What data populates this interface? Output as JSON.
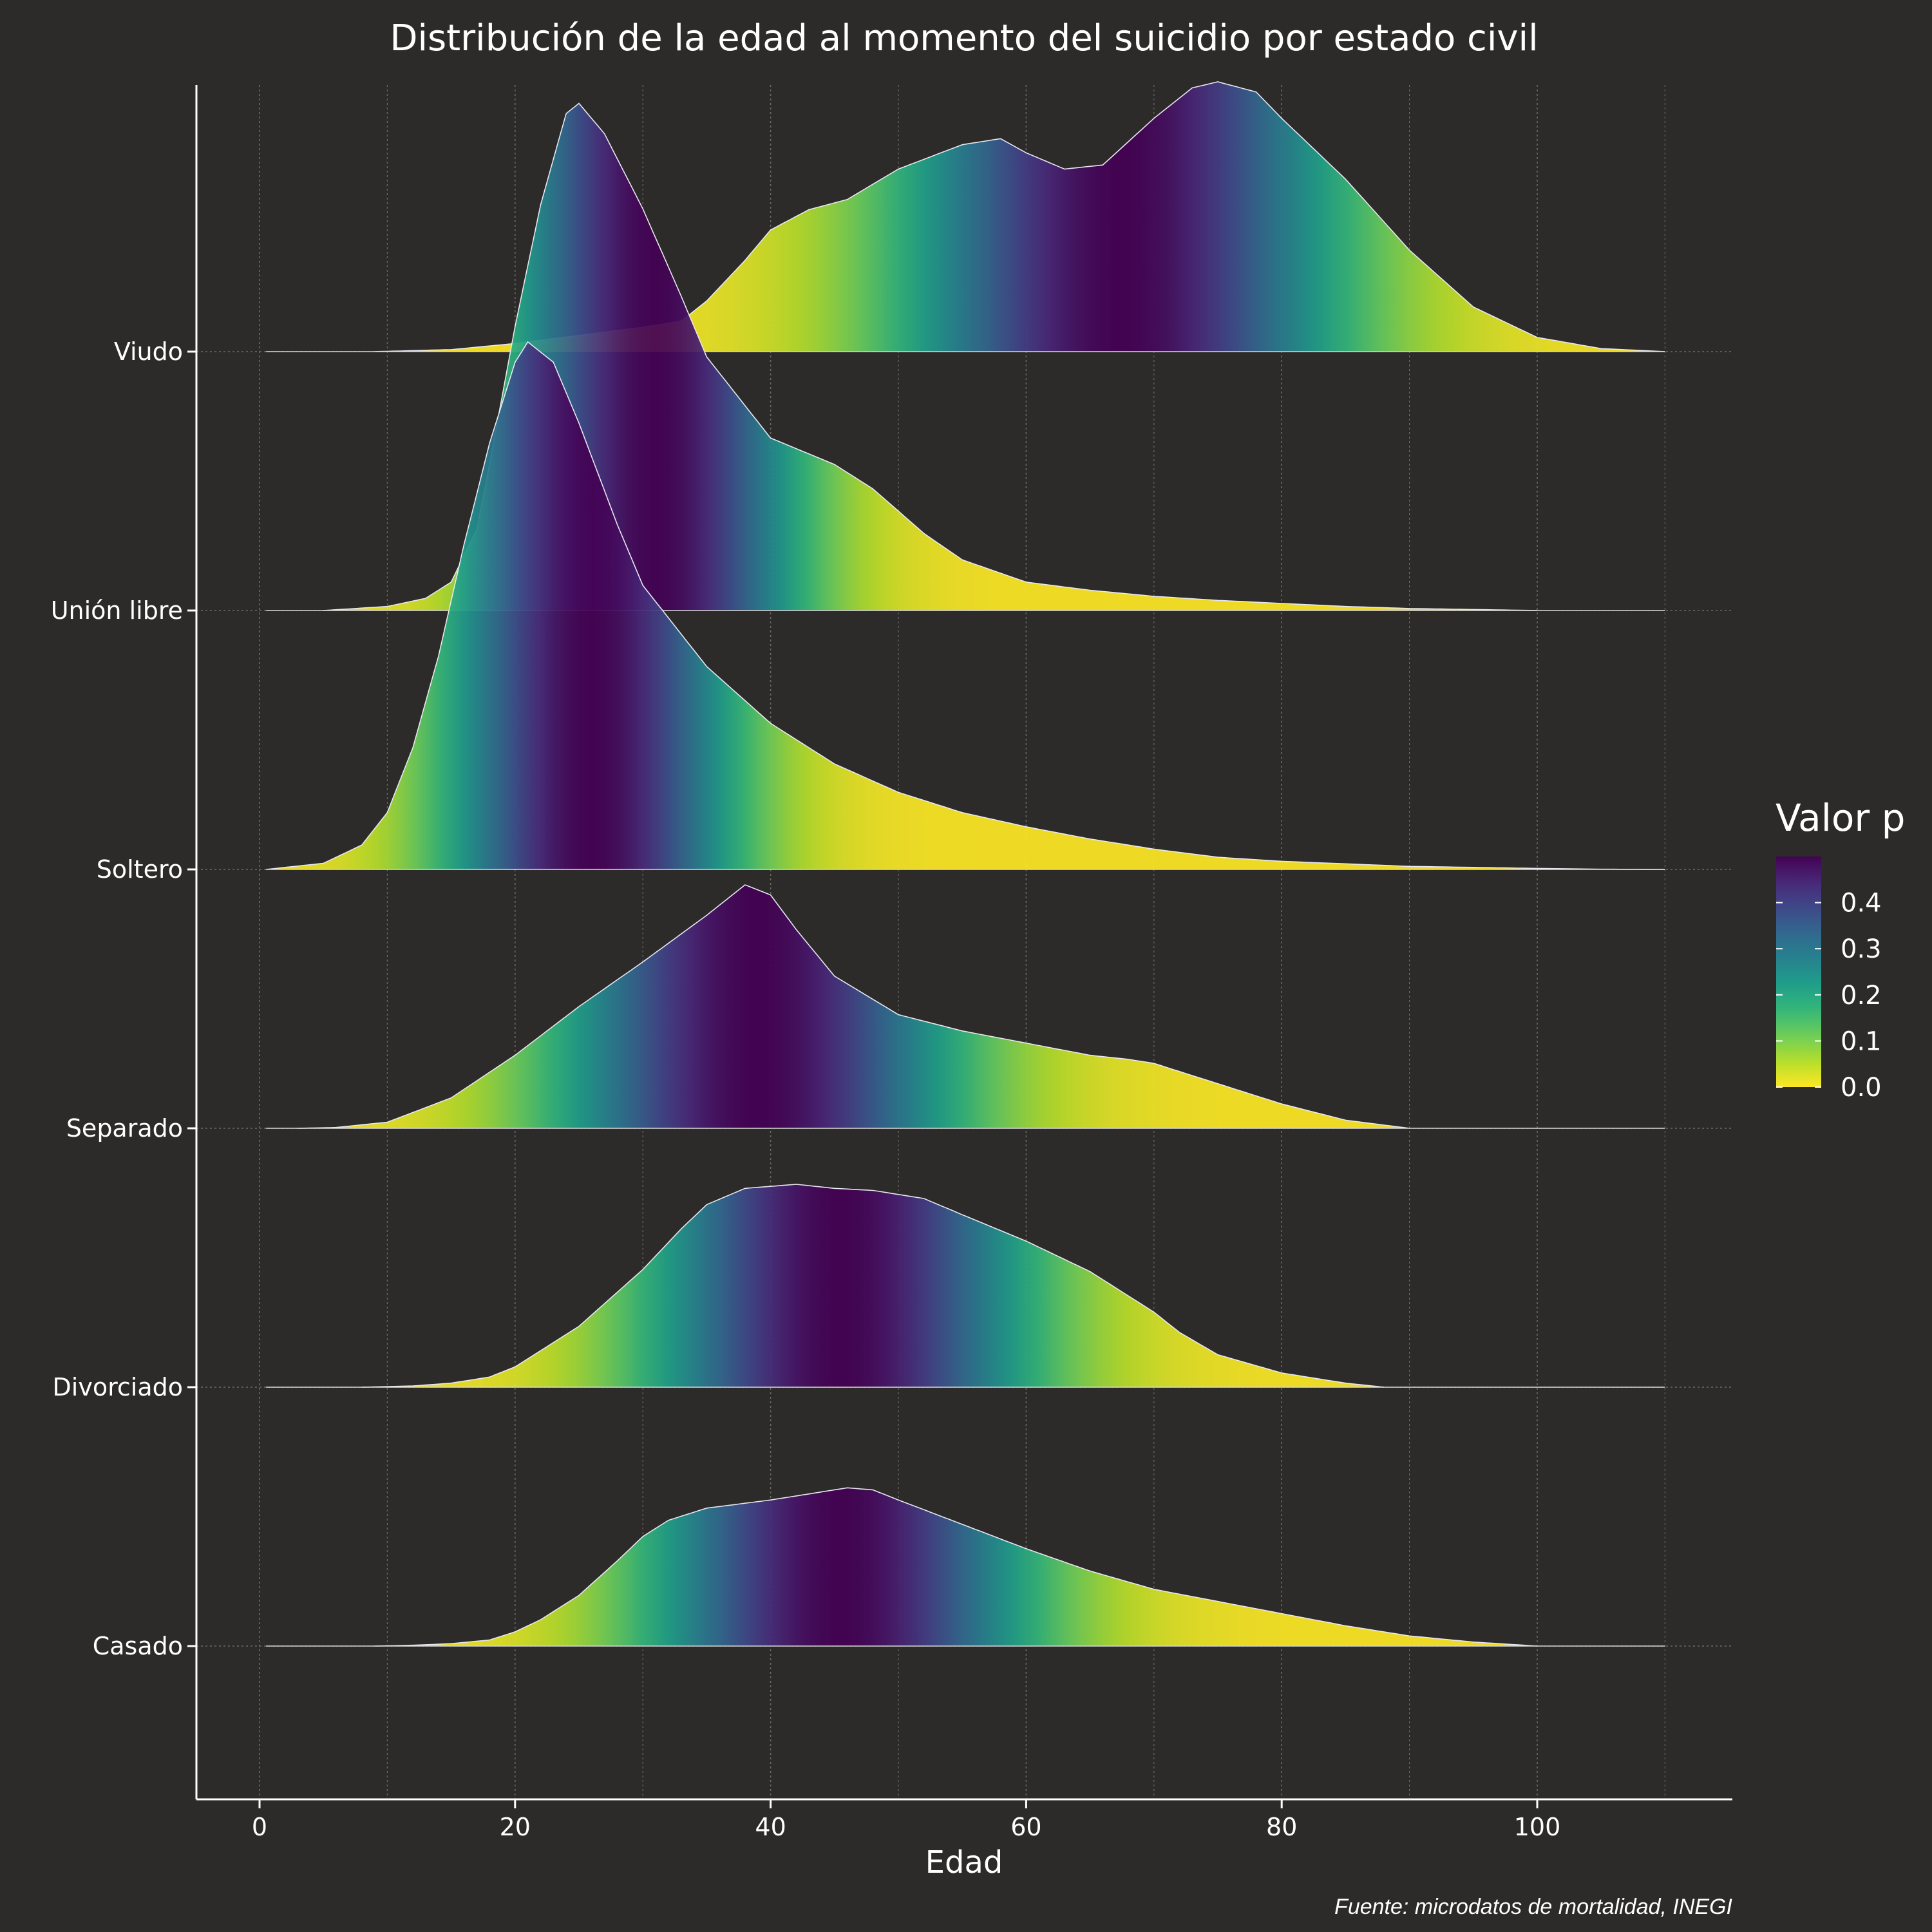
{
  "chart_data": {
    "type": "area",
    "subtype": "ridgeline",
    "title": "Distribución de la edad al momento del suicidio por estado civil",
    "xlabel": "Edad",
    "ylabel": "",
    "caption": "Fuente: microdatos de mortalidad, INEGI",
    "xlim": [
      -5,
      115
    ],
    "x_ticks": [
      0,
      20,
      40,
      60,
      80,
      100
    ],
    "grid": true,
    "legend": {
      "title": "Valor p",
      "position": "right",
      "ticks": [
        0.0,
        0.1,
        0.2,
        0.3,
        0.4
      ],
      "tick_labels": [
        "0.0",
        "0.1",
        "0.2",
        "0.3",
        "0.4"
      ],
      "range": [
        0,
        0.5
      ],
      "palette": [
        "#fde725",
        "#b5de2b",
        "#6ece58",
        "#35b779",
        "#1f9e89",
        "#26828e",
        "#31688e",
        "#3e4989",
        "#482878",
        "#440154"
      ]
    },
    "categories": [
      "Casado",
      "Divorciado",
      "Separado",
      "Soltero",
      "Unión libre",
      "Viudo"
    ],
    "series": [
      {
        "name": "Casado",
        "x_range": [
          9,
          100
        ],
        "median": 45.5,
        "mad": 10.5,
        "points": [
          [
            9,
            0
          ],
          [
            12,
            0.004
          ],
          [
            15,
            0.012
          ],
          [
            18,
            0.03
          ],
          [
            20,
            0.07
          ],
          [
            22,
            0.13
          ],
          [
            25,
            0.25
          ],
          [
            28,
            0.42
          ],
          [
            30,
            0.54
          ],
          [
            32,
            0.62
          ],
          [
            35,
            0.68
          ],
          [
            40,
            0.72
          ],
          [
            43,
            0.75
          ],
          [
            46,
            0.78
          ],
          [
            48,
            0.77
          ],
          [
            50,
            0.72
          ],
          [
            55,
            0.6
          ],
          [
            60,
            0.48
          ],
          [
            65,
            0.37
          ],
          [
            70,
            0.28
          ],
          [
            75,
            0.22
          ],
          [
            80,
            0.16
          ],
          [
            85,
            0.1
          ],
          [
            90,
            0.05
          ],
          [
            95,
            0.02
          ],
          [
            100,
            0
          ]
        ]
      },
      {
        "name": "Divorciado",
        "x_range": [
          8,
          88
        ],
        "median": 45.5,
        "mad": 10.5,
        "points": [
          [
            8,
            0
          ],
          [
            12,
            0.006
          ],
          [
            15,
            0.02
          ],
          [
            18,
            0.05
          ],
          [
            20,
            0.1
          ],
          [
            25,
            0.3
          ],
          [
            30,
            0.58
          ],
          [
            33,
            0.78
          ],
          [
            35,
            0.9
          ],
          [
            38,
            0.98
          ],
          [
            42,
            1.0
          ],
          [
            45,
            0.98
          ],
          [
            48,
            0.97
          ],
          [
            52,
            0.93
          ],
          [
            55,
            0.85
          ],
          [
            60,
            0.72
          ],
          [
            65,
            0.57
          ],
          [
            68,
            0.45
          ],
          [
            70,
            0.37
          ],
          [
            72,
            0.27
          ],
          [
            75,
            0.16
          ],
          [
            80,
            0.07
          ],
          [
            85,
            0.02
          ],
          [
            88,
            0
          ]
        ]
      },
      {
        "name": "Separado",
        "x_range": [
          3,
          90
        ],
        "median": 39,
        "mad": 11,
        "points": [
          [
            3,
            0
          ],
          [
            6,
            0.004
          ],
          [
            10,
            0.03
          ],
          [
            15,
            0.15
          ],
          [
            20,
            0.36
          ],
          [
            25,
            0.6
          ],
          [
            30,
            0.82
          ],
          [
            35,
            1.05
          ],
          [
            38,
            1.2
          ],
          [
            40,
            1.15
          ],
          [
            42,
            0.98
          ],
          [
            45,
            0.75
          ],
          [
            50,
            0.56
          ],
          [
            55,
            0.48
          ],
          [
            60,
            0.42
          ],
          [
            65,
            0.36
          ],
          [
            68,
            0.34
          ],
          [
            70,
            0.32
          ],
          [
            75,
            0.22
          ],
          [
            80,
            0.12
          ],
          [
            85,
            0.04
          ],
          [
            90,
            0
          ]
        ]
      },
      {
        "name": "Soltero",
        "x_range": [
          0.5,
          110
        ],
        "median": 26,
        "mad": 8,
        "points": [
          [
            0.5,
            0
          ],
          [
            5,
            0.03
          ],
          [
            8,
            0.12
          ],
          [
            10,
            0.28
          ],
          [
            12,
            0.6
          ],
          [
            14,
            1.05
          ],
          [
            16,
            1.6
          ],
          [
            18,
            2.1
          ],
          [
            20,
            2.5
          ],
          [
            21,
            2.6
          ],
          [
            23,
            2.5
          ],
          [
            25,
            2.2
          ],
          [
            28,
            1.7
          ],
          [
            30,
            1.4
          ],
          [
            35,
            1.0
          ],
          [
            40,
            0.72
          ],
          [
            45,
            0.52
          ],
          [
            50,
            0.38
          ],
          [
            55,
            0.28
          ],
          [
            60,
            0.21
          ],
          [
            65,
            0.15
          ],
          [
            70,
            0.1
          ],
          [
            75,
            0.06
          ],
          [
            80,
            0.04
          ],
          [
            90,
            0.015
          ],
          [
            100,
            0.005
          ],
          [
            105,
            0.001
          ],
          [
            110,
            0
          ]
        ]
      },
      {
        "name": "Unión libre",
        "x_range": [
          5,
          100
        ],
        "median": 31,
        "mad": 8,
        "points": [
          [
            5,
            0
          ],
          [
            10,
            0.02
          ],
          [
            13,
            0.06
          ],
          [
            15,
            0.14
          ],
          [
            17,
            0.4
          ],
          [
            18,
            0.72
          ],
          [
            20,
            1.4
          ],
          [
            22,
            2.0
          ],
          [
            24,
            2.45
          ],
          [
            25,
            2.5
          ],
          [
            27,
            2.35
          ],
          [
            30,
            1.98
          ],
          [
            33,
            1.55
          ],
          [
            35,
            1.25
          ],
          [
            40,
            0.85
          ],
          [
            45,
            0.72
          ],
          [
            48,
            0.6
          ],
          [
            52,
            0.38
          ],
          [
            55,
            0.25
          ],
          [
            60,
            0.14
          ],
          [
            65,
            0.1
          ],
          [
            70,
            0.07
          ],
          [
            75,
            0.05
          ],
          [
            80,
            0.035
          ],
          [
            85,
            0.02
          ],
          [
            90,
            0.01
          ],
          [
            100,
            0
          ]
        ]
      },
      {
        "name": "Viudo",
        "x_range": [
          9,
          110
        ],
        "median": 67.5,
        "mad": 12,
        "points": [
          [
            9,
            0
          ],
          [
            15,
            0.01
          ],
          [
            20,
            0.04
          ],
          [
            25,
            0.08
          ],
          [
            30,
            0.12
          ],
          [
            33,
            0.15
          ],
          [
            35,
            0.25
          ],
          [
            38,
            0.45
          ],
          [
            40,
            0.6
          ],
          [
            43,
            0.7
          ],
          [
            46,
            0.75
          ],
          [
            50,
            0.9
          ],
          [
            55,
            1.02
          ],
          [
            58,
            1.05
          ],
          [
            60,
            0.98
          ],
          [
            63,
            0.9
          ],
          [
            66,
            0.92
          ],
          [
            70,
            1.15
          ],
          [
            73,
            1.3
          ],
          [
            75,
            1.33
          ],
          [
            78,
            1.28
          ],
          [
            80,
            1.15
          ],
          [
            85,
            0.85
          ],
          [
            90,
            0.5
          ],
          [
            95,
            0.22
          ],
          [
            100,
            0.07
          ],
          [
            105,
            0.015
          ],
          [
            110,
            0
          ]
        ]
      }
    ]
  }
}
